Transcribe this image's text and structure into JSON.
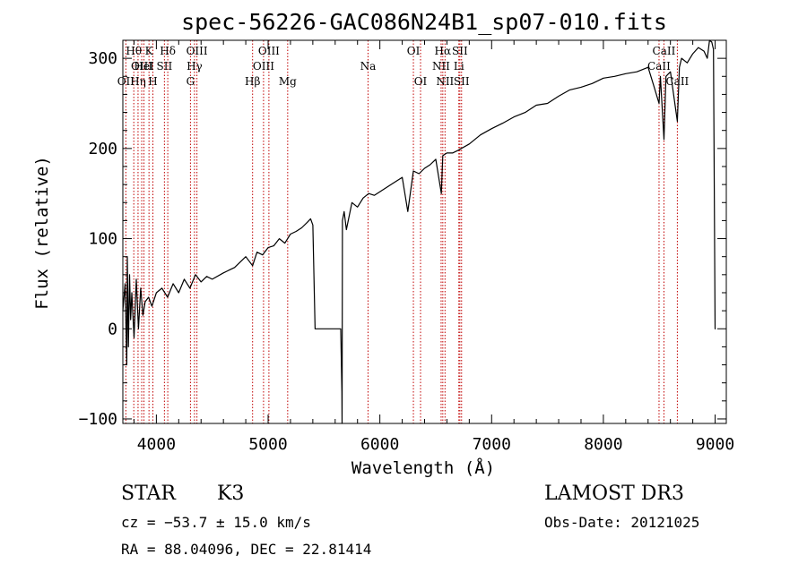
{
  "chart_data": {
    "type": "line",
    "title": "spec-56226-GAC086N24B1_sp07-010.fits",
    "xlabel": "Wavelength (Å)",
    "ylabel": "Flux (relative)",
    "xlim": [
      3700,
      9100
    ],
    "ylim": [
      -105,
      320
    ],
    "xticks": [
      4000,
      5000,
      6000,
      7000,
      8000,
      9000
    ],
    "yticks": [
      -100,
      0,
      100,
      200,
      300
    ],
    "xtick_labels": [
      "4000",
      "5000",
      "6000",
      "7000",
      "8000",
      "9000"
    ],
    "ytick_labels": [
      "−100",
      "0",
      "100",
      "200",
      "300"
    ],
    "series": [
      {
        "name": "spectrum",
        "x": [
          3700,
          3720,
          3735,
          3740,
          3750,
          3760,
          3770,
          3780,
          3800,
          3820,
          3840,
          3860,
          3880,
          3900,
          3930,
          3960,
          4000,
          4050,
          4100,
          4150,
          4200,
          4250,
          4300,
          4350,
          4400,
          4450,
          4500,
          4600,
          4700,
          4800,
          4861,
          4900,
          4950,
          5000,
          5050,
          5100,
          5150,
          5200,
          5250,
          5300,
          5350,
          5380,
          5400,
          5420,
          5600,
          5650,
          5660,
          5662,
          5665,
          5680,
          5700,
          5750,
          5800,
          5850,
          5900,
          5950,
          6000,
          6100,
          6200,
          6250,
          6300,
          6350,
          6400,
          6450,
          6500,
          6550,
          6563,
          6600,
          6650,
          6700,
          6800,
          6900,
          7000,
          7100,
          7200,
          7300,
          7400,
          7500,
          7600,
          7700,
          7800,
          7900,
          8000,
          8100,
          8200,
          8300,
          8400,
          8450,
          8498,
          8510,
          8542,
          8560,
          8600,
          8662,
          8680,
          8700,
          8750,
          8800,
          8850,
          8900,
          8930,
          8950,
          8970,
          8985,
          9000,
          9005
        ],
        "y": [
          20,
          50,
          -40,
          80,
          -20,
          60,
          10,
          40,
          -10,
          55,
          0,
          45,
          15,
          30,
          35,
          25,
          40,
          45,
          35,
          50,
          40,
          55,
          45,
          60,
          52,
          58,
          55,
          62,
          68,
          80,
          70,
          85,
          82,
          90,
          92,
          100,
          95,
          105,
          108,
          112,
          118,
          122,
          115,
          0,
          0,
          0,
          -70,
          -105,
          120,
          130,
          110,
          140,
          135,
          145,
          150,
          148,
          152,
          160,
          168,
          130,
          175,
          172,
          178,
          182,
          188,
          150,
          192,
          195,
          195,
          198,
          205,
          215,
          222,
          228,
          235,
          240,
          248,
          250,
          258,
          265,
          268,
          272,
          278,
          280,
          283,
          285,
          290,
          270,
          250,
          280,
          210,
          280,
          285,
          230,
          290,
          300,
          295,
          305,
          312,
          308,
          300,
          320,
          318,
          310,
          0,
          0
        ]
      }
    ],
    "spectral_lines": [
      {
        "name": "OII",
        "wavelength": 3727,
        "row": 3
      },
      {
        "name": "Hθ",
        "wavelength": 3798,
        "row": 1
      },
      {
        "name": "Hη",
        "wavelength": 3836,
        "row": 3
      },
      {
        "name": "OIII",
        "wavelength": 3869,
        "row": 2
      },
      {
        "name": "HeI",
        "wavelength": 3889,
        "row": 2
      },
      {
        "name": "K",
        "wavelength": 3934,
        "row": 1
      },
      {
        "name": "H",
        "wavelength": 3969,
        "row": 3
      },
      {
        "name": "SII",
        "wavelength": 4072,
        "row": 2
      },
      {
        "name": "Hδ",
        "wavelength": 4102,
        "row": 1
      },
      {
        "name": "G",
        "wavelength": 4305,
        "row": 3
      },
      {
        "name": "Hγ",
        "wavelength": 4341,
        "row": 2
      },
      {
        "name": "OIII",
        "wavelength": 4363,
        "row": 1
      },
      {
        "name": "Hβ",
        "wavelength": 4861,
        "row": 3
      },
      {
        "name": "OIII",
        "wavelength": 4959,
        "row": 2
      },
      {
        "name": "OIII",
        "wavelength": 5007,
        "row": 1
      },
      {
        "name": "Mg",
        "wavelength": 5175,
        "row": 3
      },
      {
        "name": "Na",
        "wavelength": 5894,
        "row": 2
      },
      {
        "name": "OI",
        "wavelength": 6300,
        "row": 1
      },
      {
        "name": "OI",
        "wavelength": 6364,
        "row": 3
      },
      {
        "name": "NII",
        "wavelength": 6548,
        "row": 2
      },
      {
        "name": "Hα",
        "wavelength": 6563,
        "row": 1
      },
      {
        "name": "NII",
        "wavelength": 6583,
        "row": 3
      },
      {
        "name": "Li",
        "wavelength": 6707,
        "row": 2
      },
      {
        "name": "SII",
        "wavelength": 6716,
        "row": 1
      },
      {
        "name": "SII",
        "wavelength": 6731,
        "row": 3
      },
      {
        "name": "CaII",
        "wavelength": 8498,
        "row": 2
      },
      {
        "name": "CaII",
        "wavelength": 8542,
        "row": 1
      },
      {
        "name": "CaII",
        "wavelength": 8662,
        "row": 3
      }
    ]
  },
  "info": {
    "object_class": "STAR",
    "subclass": "K3",
    "survey": "LAMOST DR3",
    "cz": "cz = −53.7 ± 15.0 km/s",
    "obs_date": "Obs-Date: 20121025",
    "coords": "RA =  88.04096, DEC =  22.81414"
  },
  "colors": {
    "line_marker": "#c00000",
    "spectrum": "#000000",
    "axes": "#000000"
  }
}
